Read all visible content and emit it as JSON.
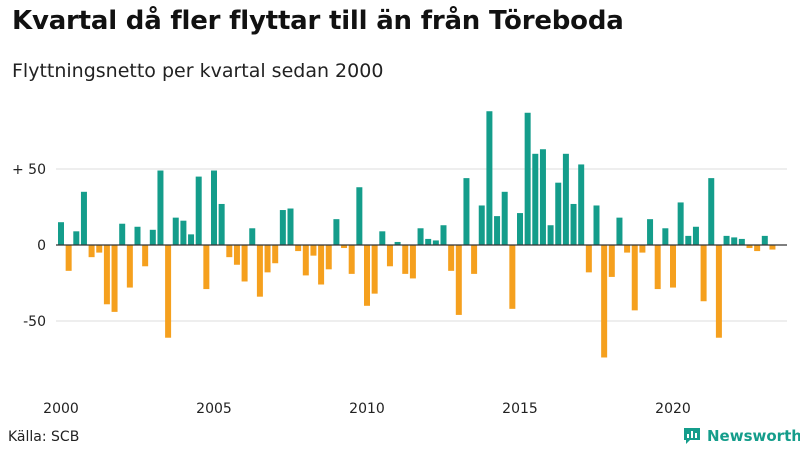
{
  "header": {
    "title": "Kvartal då fler flyttar till än från Töreboda",
    "subtitle": "Flyttningsnetto per kvartal sedan 2000"
  },
  "footer": {
    "source": "Källa: SCB",
    "brand": "Newsworthy",
    "brand_icon": "newsworthy-logo-icon"
  },
  "colors": {
    "positive": "#149d8b",
    "negative": "#f5a01e",
    "grid": "#dddddd",
    "zero_line": "#333333"
  },
  "chart_data": {
    "type": "bar",
    "title": "Flyttningsnetto per kvartal sedan 2000",
    "xlabel": "",
    "ylabel": "",
    "ylim": [
      -90,
      90
    ],
    "yticks": [
      {
        "value": 50,
        "label": "+ 50"
      },
      {
        "value": 0,
        "label": "0"
      },
      {
        "value": -50,
        "label": "-50"
      }
    ],
    "xticks": [
      {
        "year": 2000,
        "label": "2000"
      },
      {
        "year": 2005,
        "label": "2005"
      },
      {
        "year": 2010,
        "label": "2010"
      },
      {
        "year": 2015,
        "label": "2015"
      },
      {
        "year": 2020,
        "label": "2020"
      }
    ],
    "grid": true,
    "start_year": 2000,
    "values": [
      15,
      -17,
      9,
      35,
      -8,
      -5,
      -39,
      -44,
      14,
      -28,
      12,
      -14,
      10,
      49,
      -61,
      18,
      16,
      7,
      45,
      -29,
      49,
      27,
      -8,
      -13,
      -24,
      11,
      -34,
      -18,
      -12,
      23,
      24,
      -4,
      -20,
      -7,
      -26,
      -16,
      17,
      -2,
      -19,
      38,
      -40,
      -32,
      9,
      -14,
      2,
      -19,
      -22,
      11,
      4,
      3,
      13,
      -17,
      -46,
      44,
      -19,
      26,
      88,
      19,
      35,
      -42,
      21,
      87,
      60,
      63,
      13,
      41,
      60,
      27,
      53,
      -18,
      26,
      -74,
      -21,
      18,
      -5,
      -43,
      -5,
      17,
      -29,
      11,
      -28,
      28,
      6,
      12,
      -37,
      44,
      -61,
      6,
      5,
      4,
      -2,
      -4,
      6,
      -3
    ]
  }
}
